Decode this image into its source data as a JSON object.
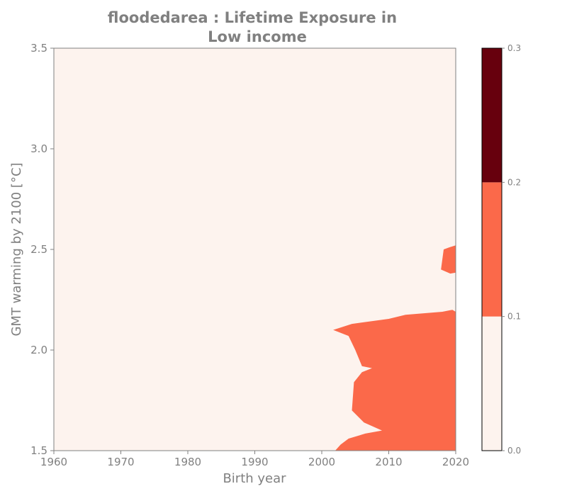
{
  "chart_data": {
    "type": "heatmap",
    "subtype": "filled-contour",
    "title_line1": "floodedarea : Lifetime Exposure in",
    "title_line2": "Low income",
    "xlabel": "Birth year",
    "ylabel": "GMT warming by 2100 [°C]",
    "xlim": [
      1960,
      2020
    ],
    "ylim": [
      1.5,
      3.5
    ],
    "x_ticks": [
      "1960",
      "1970",
      "1980",
      "1990",
      "2000",
      "2010",
      "2020"
    ],
    "y_ticks": [
      "1.5",
      "2.0",
      "2.5",
      "3.0",
      "3.5"
    ],
    "colorbar": {
      "ticks": [
        "0.0",
        "0.1",
        "0.2",
        "0.3"
      ],
      "levels": [
        0.0,
        0.1,
        0.2,
        0.3
      ],
      "colors": [
        "#fdf3ee",
        "#fb694a",
        "#67000d"
      ]
    },
    "background_level": "0.0–0.1",
    "regions": [
      {
        "level": "0.1–0.2",
        "description": "Main exposure region, birth years ~2002–2020, GMT 1.5–2.2 °C",
        "boundary": [
          [
            2002.0,
            1.5
          ],
          [
            2002.8,
            1.53
          ],
          [
            2004.0,
            1.56
          ],
          [
            2006.5,
            1.585
          ],
          [
            2009.0,
            1.6
          ],
          [
            2006.3,
            1.64
          ],
          [
            2004.5,
            1.7
          ],
          [
            2004.8,
            1.84
          ],
          [
            2006.0,
            1.89
          ],
          [
            2007.5,
            1.91
          ],
          [
            2006.0,
            1.92
          ],
          [
            2005.0,
            2.0
          ],
          [
            2004.0,
            2.07
          ],
          [
            2001.7,
            2.1
          ],
          [
            2004.5,
            2.13
          ],
          [
            2010.0,
            2.155
          ],
          [
            2012.5,
            2.175
          ],
          [
            2018.0,
            2.19
          ],
          [
            2019.5,
            2.2
          ],
          [
            2020.0,
            2.19
          ],
          [
            2020.0,
            1.5
          ]
        ]
      },
      {
        "level": "0.1–0.2",
        "description": "Small exposure patch near birth year 2019, GMT ~2.4–2.5 °C",
        "boundary": [
          [
            2020.0,
            2.52
          ],
          [
            2019.0,
            2.51
          ],
          [
            2018.2,
            2.5
          ],
          [
            2017.8,
            2.4
          ],
          [
            2019.2,
            2.38
          ],
          [
            2020.0,
            2.385
          ]
        ]
      }
    ]
  }
}
